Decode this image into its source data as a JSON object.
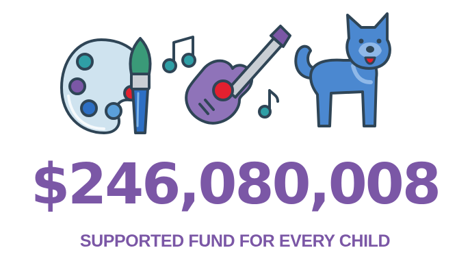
{
  "colors": {
    "brand_purple": "#7b57a6",
    "outline": "#2f4556",
    "palette_fill": "#cfe3ef",
    "guitar_fill": "#8f73b9",
    "dog_fill": "#4b88d0",
    "accent_red": "#e3202f",
    "teal": "#2f9fa6",
    "brush_green": "#3a9a78"
  },
  "icons": [
    {
      "name": "paint-palette-icon"
    },
    {
      "name": "paintbrush-icon"
    },
    {
      "name": "music-note-icon"
    },
    {
      "name": "guitar-icon"
    },
    {
      "name": "dog-icon"
    }
  ],
  "headline": {
    "amount": "$246,080,008",
    "caption": "SUPPORTED FUND FOR EVERY CHILD"
  }
}
